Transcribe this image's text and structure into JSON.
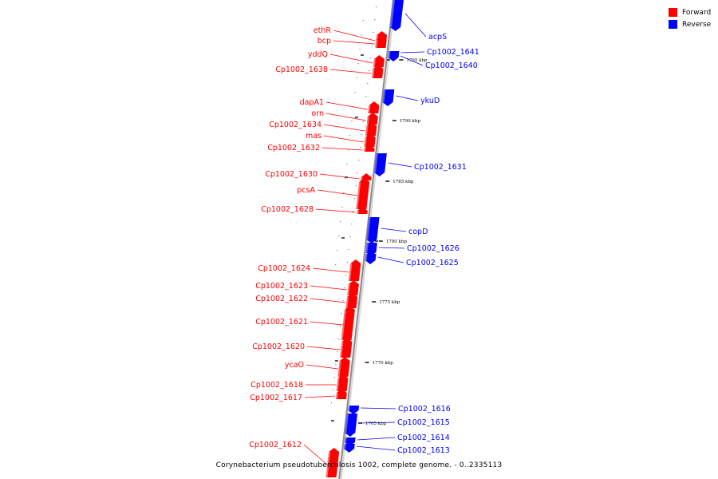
{
  "colors": {
    "forward": "#ff0000",
    "reverse": "#0000ff",
    "backbone": "#8c8c8c",
    "tick": "#000000"
  },
  "legend": [
    {
      "label": "Forward",
      "color": "#ff0000"
    },
    {
      "label": "Reverse",
      "color": "#0000ff"
    }
  ],
  "caption": "Corynebacterium pseudotuberculosis 1002, complete genome. - 0..2335113",
  "scale_ticks": [
    "1795 kbp",
    "1790 kbp",
    "1785 kbp",
    "1780 kbp",
    "1775 kbp",
    "1770 kbp",
    "1765 kbp"
  ],
  "forward_genes": [
    "ethR",
    "bcp",
    "yddQ",
    "Cp1002_1638",
    "dapA1",
    "orn",
    "Cp1002_1634",
    "mas",
    "Cp1002_1632",
    "Cp1002_1630",
    "pcsA",
    "Cp1002_1628",
    "Cp1002_1624",
    "Cp1002_1623",
    "Cp1002_1622",
    "Cp1002_1621",
    "Cp1002_1620",
    "ycaO",
    "Cp1002_1618",
    "Cp1002_1617",
    "Cp1002_1612"
  ],
  "reverse_genes": [
    "acpS",
    "Cp1002_1641",
    "Cp1002_1640",
    "ykuD",
    "Cp1002_1631",
    "copD",
    "Cp1002_1626",
    "Cp1002_1625",
    "Cp1002_1616",
    "Cp1002_1615",
    "Cp1002_1614",
    "Cp1002_1613"
  ]
}
